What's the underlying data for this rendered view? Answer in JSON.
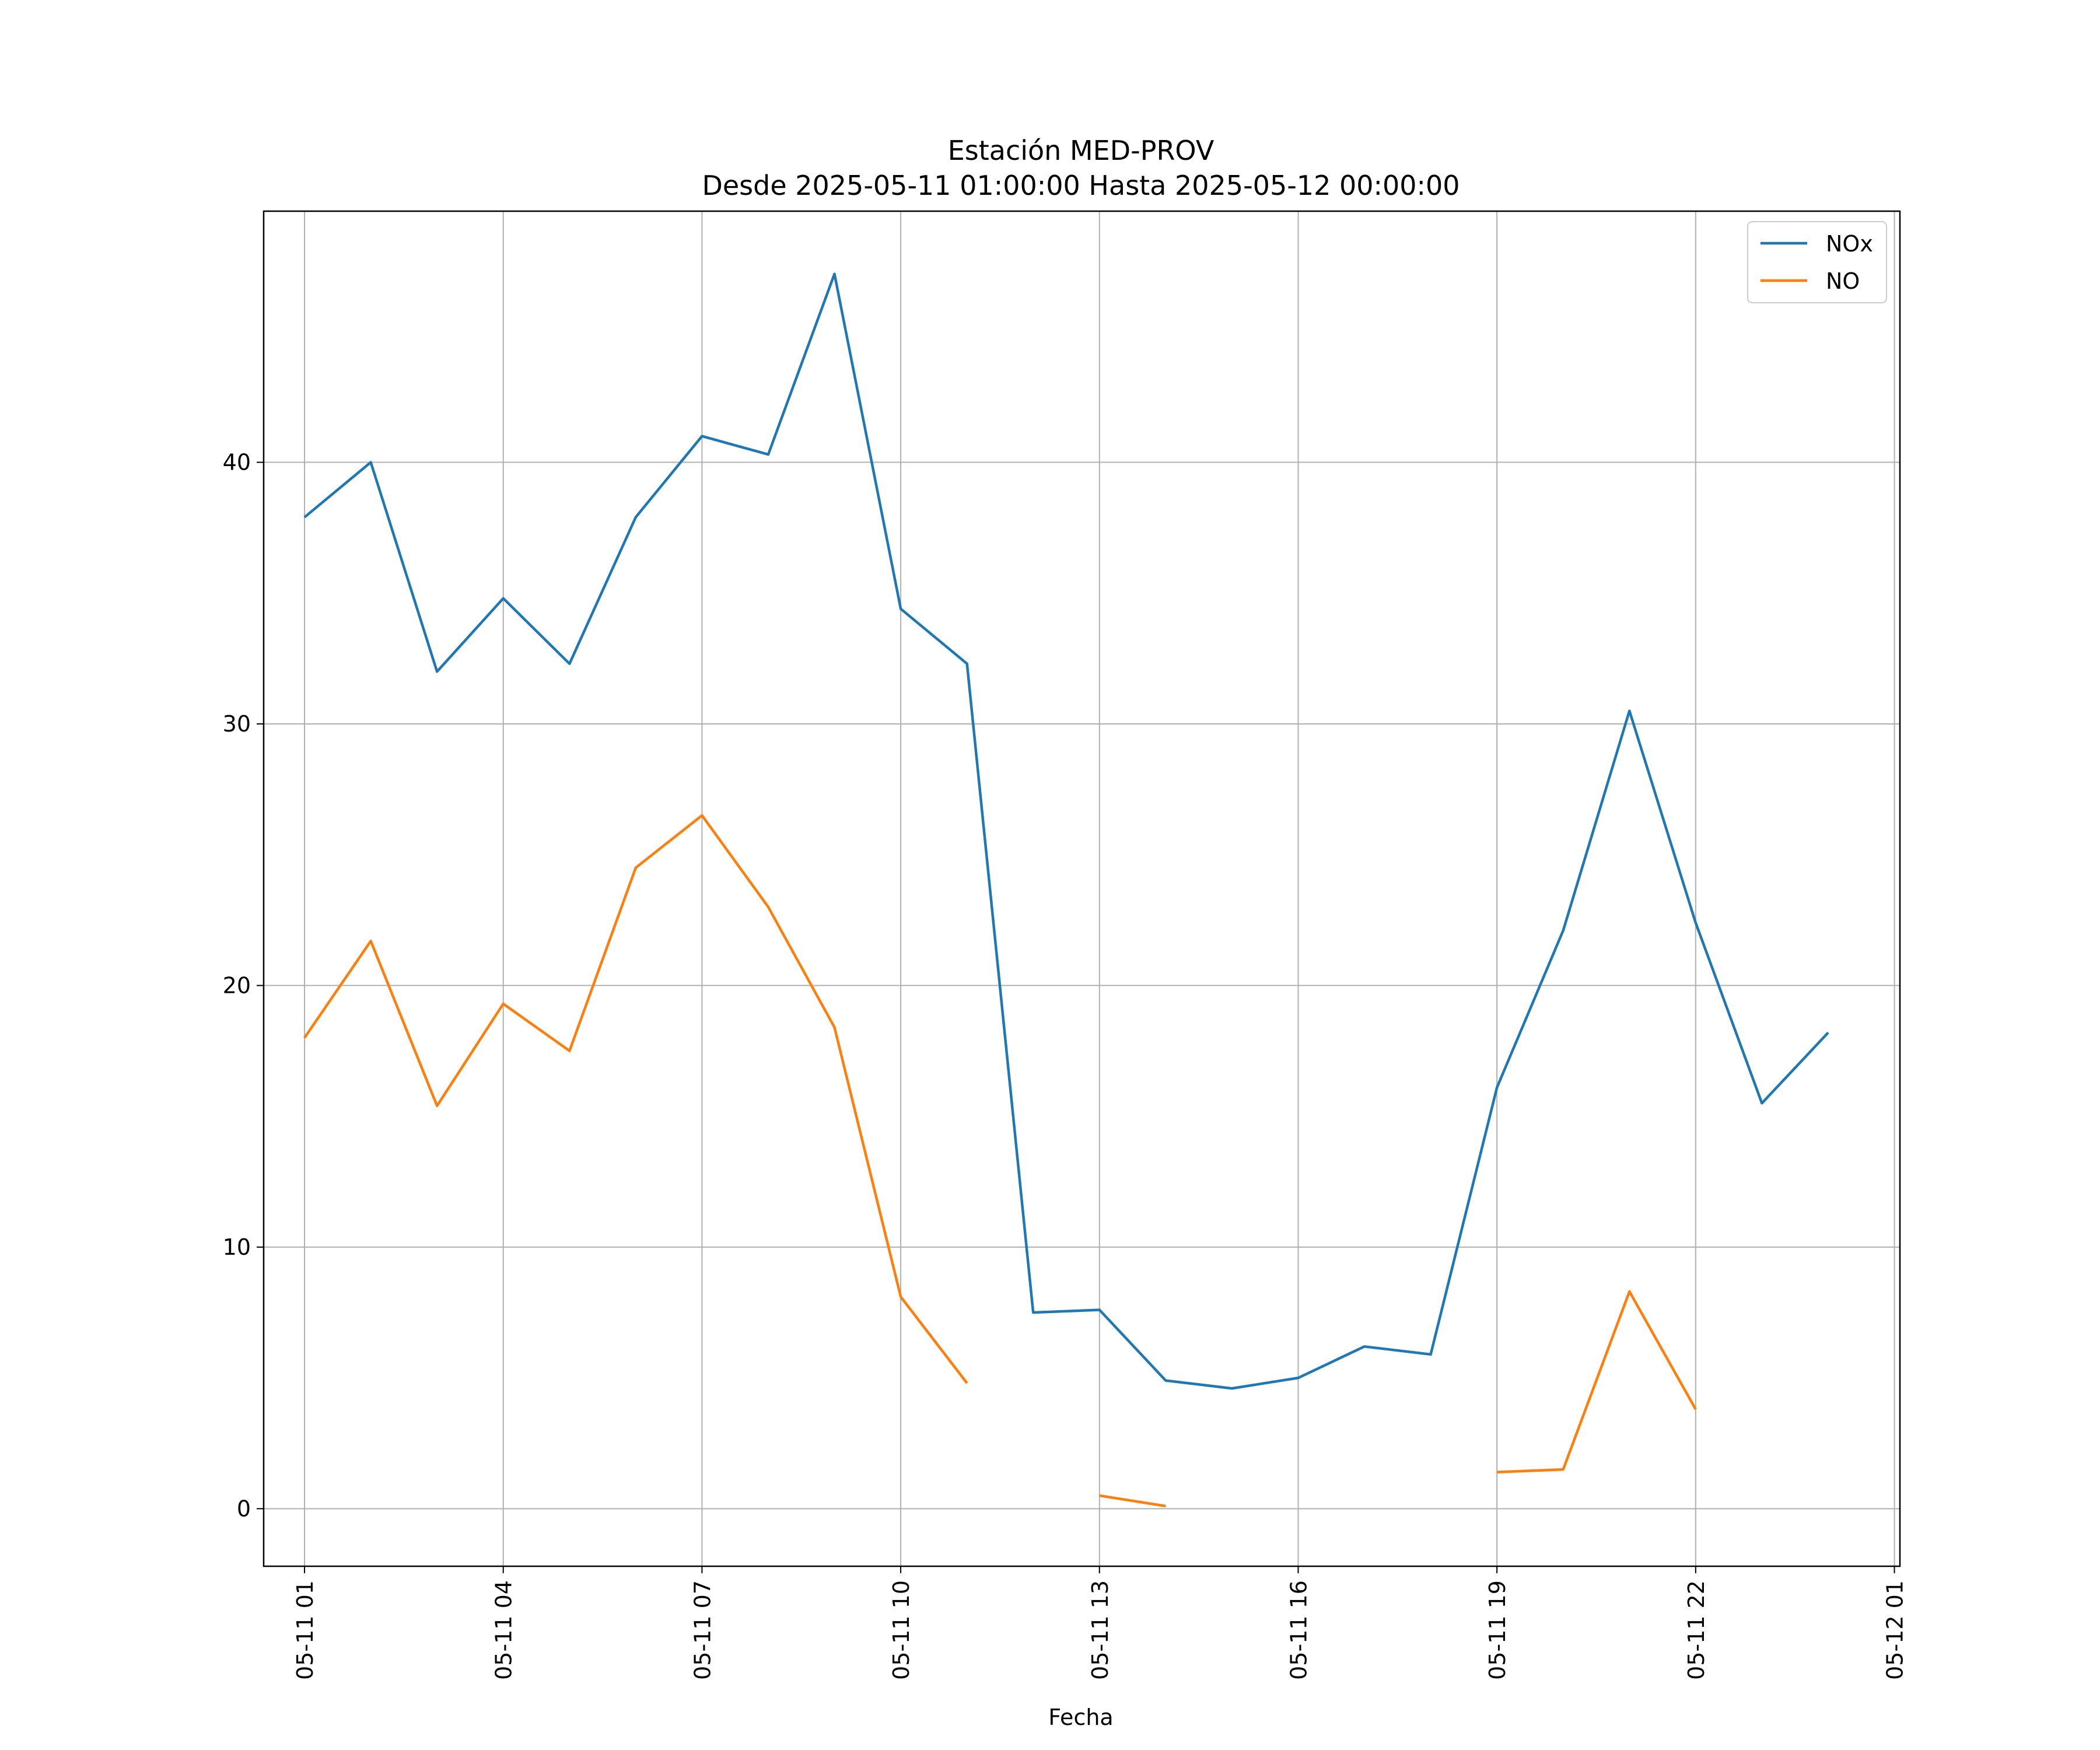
{
  "chart_data": {
    "type": "line",
    "title": "Estación MED-PROV",
    "subtitle": "Desde 2025-05-11 01:00:00 Hasta 2025-05-12 00:00:00",
    "xlabel": "Fecha",
    "ylabel": "",
    "x": [
      "2025-05-11 01:00",
      "2025-05-11 02:00",
      "2025-05-11 03:00",
      "2025-05-11 04:00",
      "2025-05-11 05:00",
      "2025-05-11 06:00",
      "2025-05-11 07:00",
      "2025-05-11 08:00",
      "2025-05-11 09:00",
      "2025-05-11 10:00",
      "2025-05-11 11:00",
      "2025-05-11 12:00",
      "2025-05-11 13:00",
      "2025-05-11 14:00",
      "2025-05-11 15:00",
      "2025-05-11 16:00",
      "2025-05-11 17:00",
      "2025-05-11 18:00",
      "2025-05-11 19:00",
      "2025-05-11 20:00",
      "2025-05-11 21:00",
      "2025-05-11 22:00",
      "2025-05-11 23:00",
      "2025-05-12 00:00"
    ],
    "xlim": [
      "2025-05-11 00:23",
      "2025-05-12 01:05"
    ],
    "ylim": [
      -2.2,
      49.6
    ],
    "grid": true,
    "legend_position": "top-right",
    "x_ticks": [
      "05-11 01",
      "05-11 04",
      "05-11 07",
      "05-11 10",
      "05-11 13",
      "05-11 16",
      "05-11 19",
      "05-11 22",
      "05-12 01"
    ],
    "y_ticks": [
      0,
      10,
      20,
      30,
      40
    ],
    "series": [
      {
        "name": "NOx",
        "color": "#1f77b4",
        "values": [
          37.9,
          40.0,
          32.0,
          34.8,
          32.3,
          37.9,
          41.0,
          40.3,
          47.2,
          34.4,
          32.3,
          7.5,
          7.6,
          4.9,
          4.6,
          5.0,
          6.2,
          5.9,
          16.1,
          22.1,
          30.5,
          22.4,
          15.5,
          18.2
        ]
      },
      {
        "name": "NO",
        "color": "#ff7f0e",
        "values": [
          18.0,
          21.7,
          15.4,
          19.3,
          17.5,
          24.5,
          26.5,
          23.0,
          18.4,
          8.1,
          4.8,
          null,
          0.5,
          0.1,
          null,
          null,
          null,
          null,
          1.4,
          1.5,
          8.3,
          3.8,
          null,
          null
        ]
      }
    ]
  }
}
